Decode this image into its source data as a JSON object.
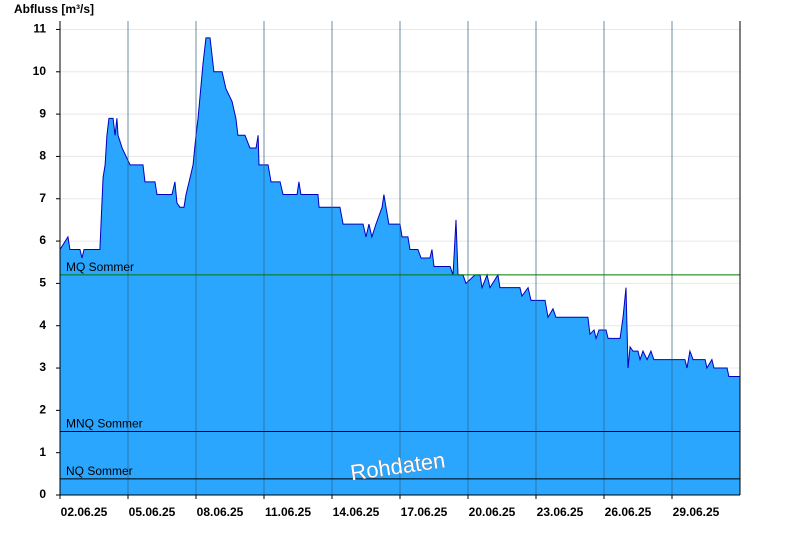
{
  "chart_data": {
    "type": "area",
    "title": "Abfluss [m³/s]",
    "xlim": [
      2,
      32
    ],
    "xticks": [
      {
        "value": 2,
        "label": "02.06.25"
      },
      {
        "value": 5,
        "label": "05.06.25"
      },
      {
        "value": 8,
        "label": "08.06.25"
      },
      {
        "value": 11,
        "label": "11.06.25"
      },
      {
        "value": 14,
        "label": "14.06.25"
      },
      {
        "value": 17,
        "label": "17.06.25"
      },
      {
        "value": 20,
        "label": "20.06.25"
      },
      {
        "value": 23,
        "label": "23.06.25"
      },
      {
        "value": 26,
        "label": "26.06.25"
      },
      {
        "value": 29,
        "label": "29.06.25"
      }
    ],
    "ylim": [
      0,
      11.2
    ],
    "yticks": [
      0,
      1,
      2,
      3,
      4,
      5,
      6,
      7,
      8,
      9,
      10,
      11
    ],
    "grid": true,
    "series": [
      {
        "name": "Abfluss",
        "color": "#2aa6ff",
        "line_color": "#0000c0",
        "x": [
          2.0,
          2.35,
          2.44,
          2.88,
          2.97,
          3.06,
          3.76,
          3.9,
          3.99,
          4.07,
          4.16,
          4.34,
          4.43,
          4.51,
          4.56,
          4.74,
          5.09,
          5.66,
          5.75,
          6.19,
          6.28,
          6.94,
          7.07,
          7.16,
          7.29,
          7.47,
          7.56,
          7.74,
          7.87,
          8.0,
          8.09,
          8.31,
          8.44,
          8.62,
          8.79,
          9.15,
          9.32,
          9.59,
          9.76,
          9.85,
          10.16,
          10.38,
          10.65,
          10.74,
          10.78,
          11.18,
          11.31,
          11.71,
          11.84,
          12.46,
          12.54,
          12.63,
          13.38,
          13.43,
          14.35,
          14.49,
          15.37,
          15.5,
          15.63,
          15.76,
          15.94,
          16.21,
          16.29,
          16.38,
          16.51,
          17.0,
          17.09,
          17.35,
          17.44,
          17.79,
          17.93,
          18.32,
          18.41,
          18.5,
          19.21,
          19.34,
          19.47,
          19.56,
          19.78,
          19.91,
          20.31,
          20.53,
          20.62,
          20.84,
          20.97,
          21.32,
          21.41,
          22.29,
          22.38,
          22.65,
          22.78,
          23.4,
          23.53,
          23.75,
          23.88,
          25.29,
          25.38,
          25.56,
          25.65,
          25.78,
          26.09,
          26.18,
          26.71,
          26.84,
          26.97,
          27.06,
          27.15,
          27.28,
          27.5,
          27.59,
          27.72,
          27.9,
          28.07,
          28.2,
          29.57,
          29.66,
          29.79,
          29.93,
          30.46,
          30.54,
          30.76,
          30.85,
          31.43,
          31.51,
          32.0
        ],
        "values": [
          5.8,
          6.1,
          5.8,
          5.8,
          5.6,
          5.8,
          5.8,
          7.5,
          7.8,
          8.5,
          8.9,
          8.9,
          8.5,
          8.9,
          8.5,
          8.2,
          7.8,
          7.8,
          7.4,
          7.4,
          7.1,
          7.1,
          7.4,
          6.9,
          6.8,
          6.8,
          7.1,
          7.5,
          7.8,
          8.5,
          8.9,
          10.2,
          10.8,
          10.8,
          10.0,
          10.0,
          9.6,
          9.3,
          8.9,
          8.5,
          8.5,
          8.2,
          8.2,
          8.5,
          7.8,
          7.8,
          7.4,
          7.4,
          7.1,
          7.1,
          7.4,
          7.1,
          7.1,
          6.8,
          6.8,
          6.4,
          6.4,
          6.1,
          6.4,
          6.1,
          6.4,
          6.8,
          7.1,
          6.8,
          6.4,
          6.4,
          6.1,
          6.1,
          5.8,
          5.8,
          5.6,
          5.6,
          5.8,
          5.4,
          5.4,
          5.2,
          6.5,
          5.2,
          5.2,
          5.0,
          5.2,
          5.2,
          4.9,
          5.2,
          4.9,
          5.2,
          4.9,
          4.9,
          4.7,
          4.9,
          4.6,
          4.6,
          4.2,
          4.4,
          4.2,
          4.2,
          3.8,
          3.9,
          3.7,
          3.9,
          3.9,
          3.7,
          3.7,
          4.2,
          4.9,
          3.0,
          3.5,
          3.4,
          3.4,
          3.2,
          3.4,
          3.2,
          3.4,
          3.2,
          3.2,
          3.0,
          3.4,
          3.2,
          3.2,
          3.0,
          3.2,
          3.0,
          3.0,
          2.8,
          2.8
        ]
      }
    ],
    "reference_lines": [
      {
        "label": "MQ Sommer",
        "value": 5.2,
        "color": "#007800"
      },
      {
        "label": "MNQ Sommer",
        "value": 1.5,
        "color": "#000000"
      },
      {
        "label": "NQ Sommer",
        "value": 0.38,
        "color": "#000000"
      }
    ],
    "annotation": "Rohdaten"
  }
}
